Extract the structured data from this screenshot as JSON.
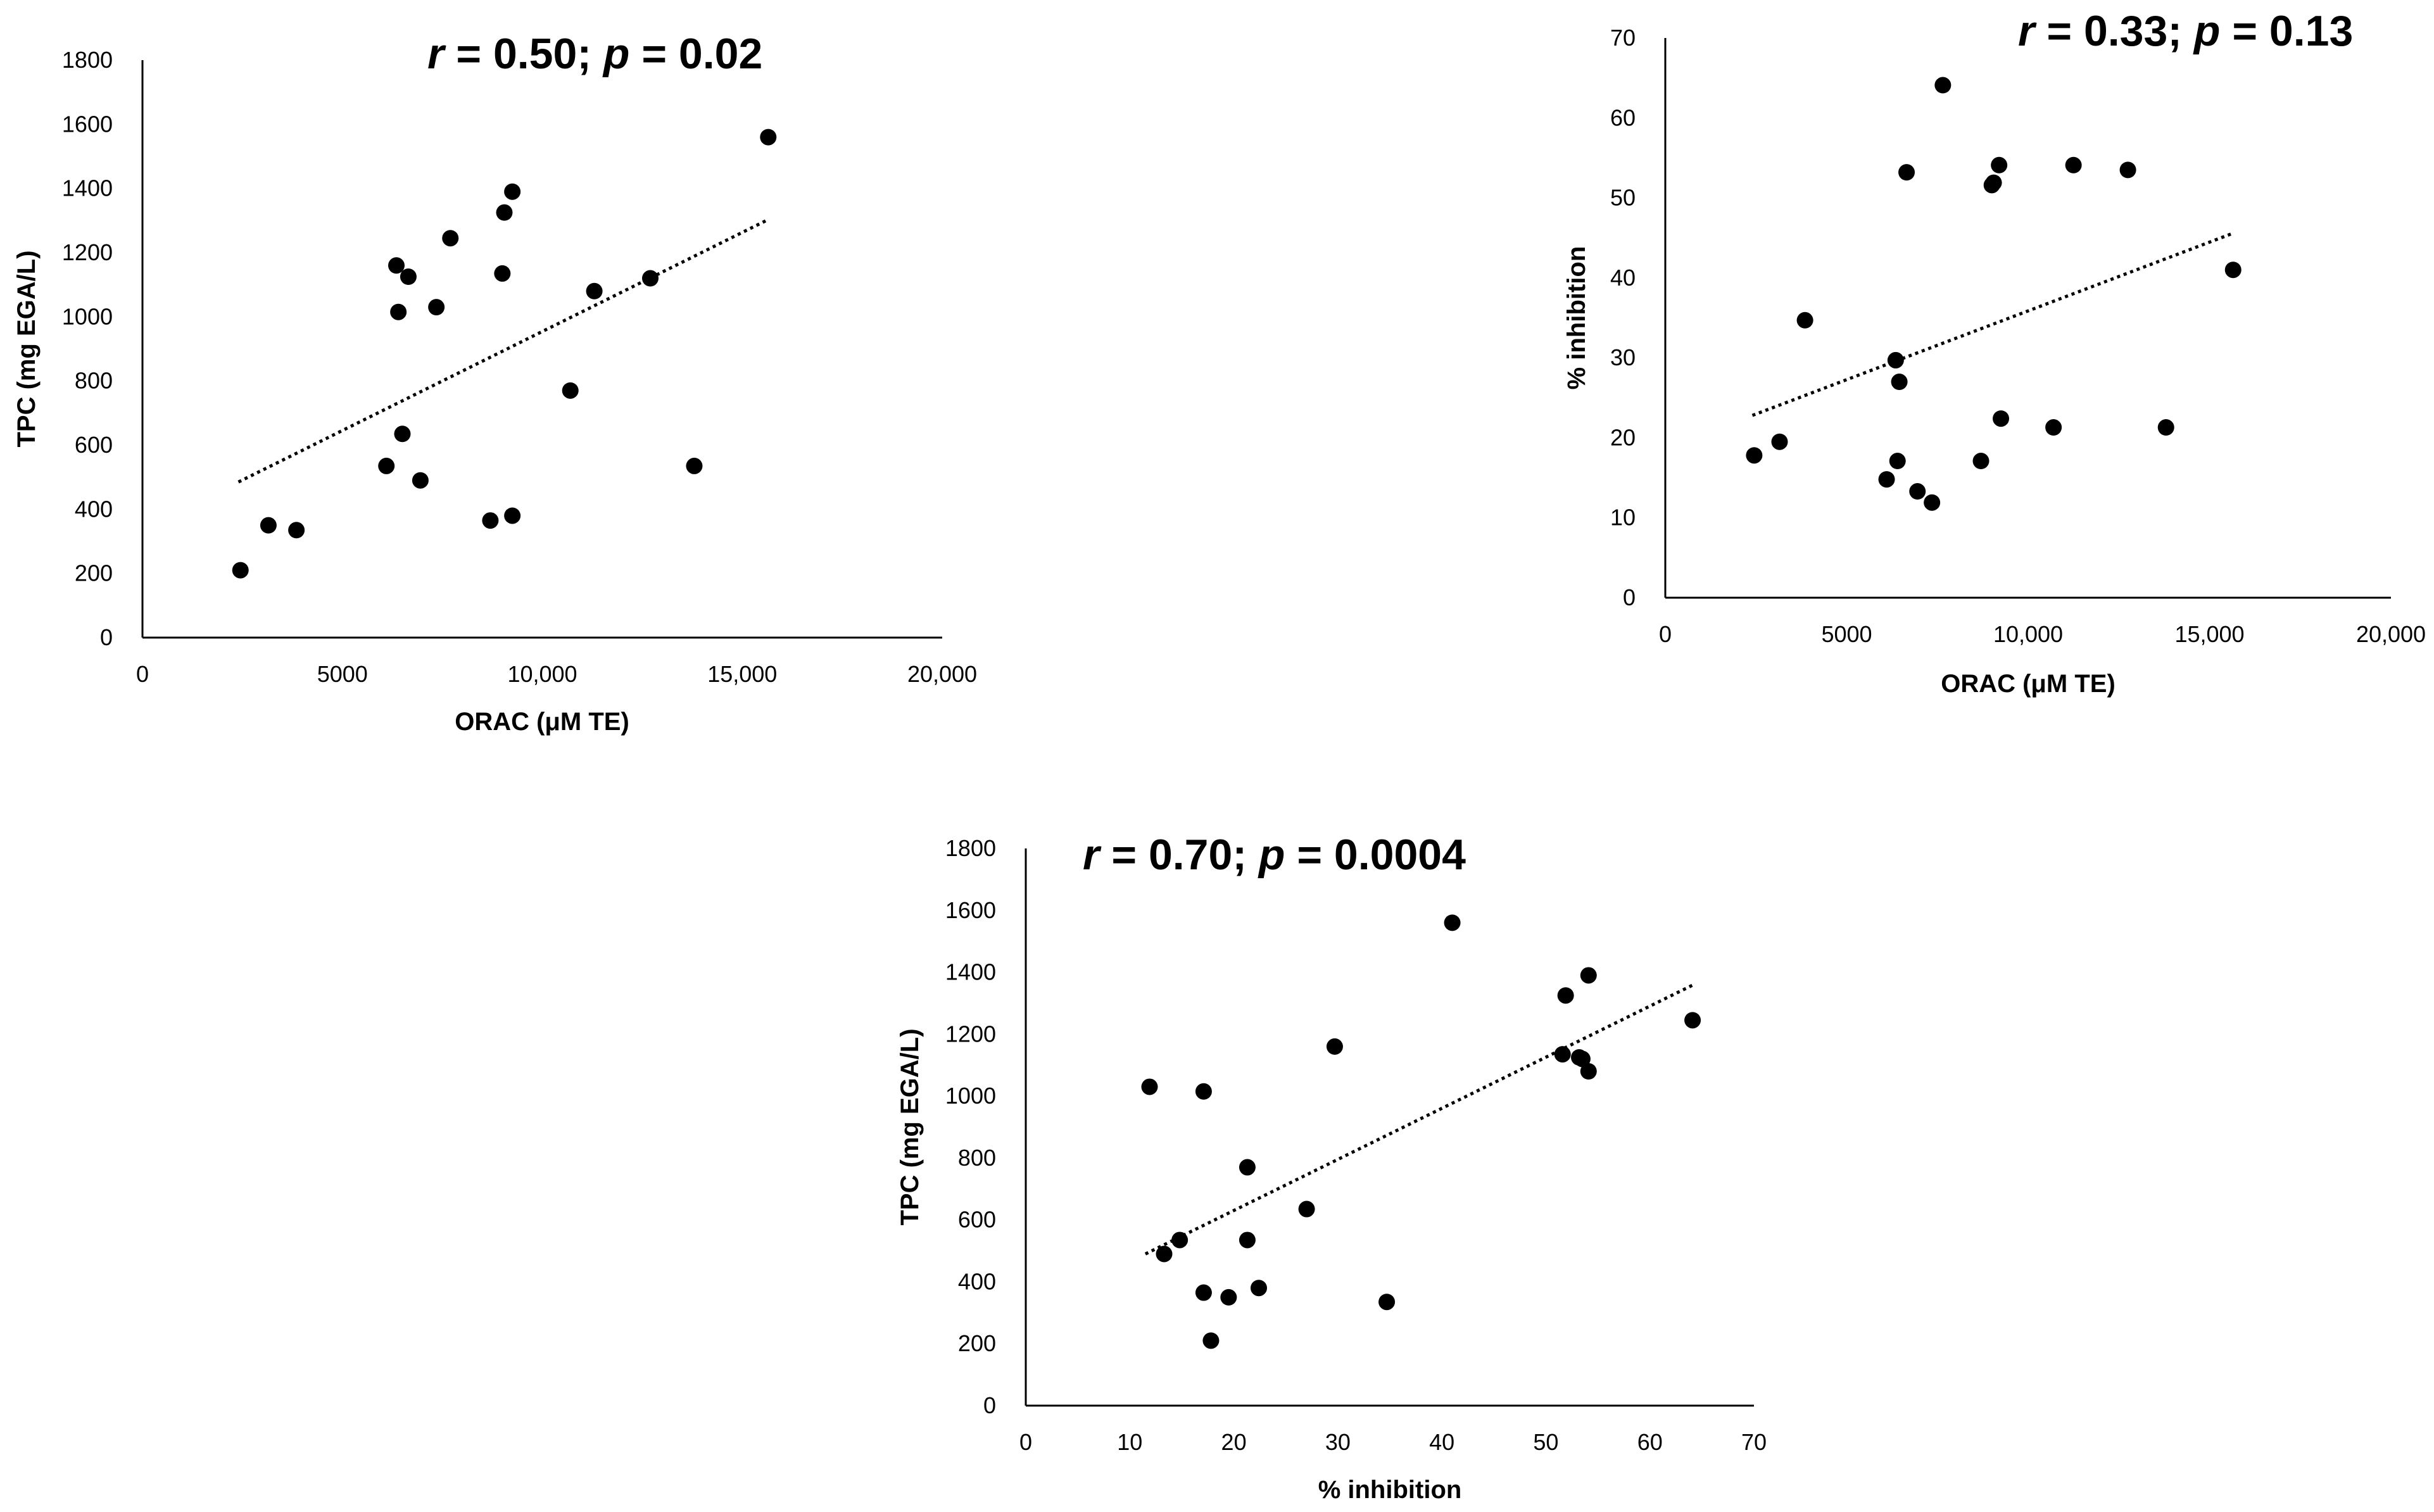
{
  "chart_data": [
    {
      "type": "scatter",
      "stat_r": "0.50",
      "stat_p": "0.02",
      "xlabel": "ORAC (μM TE)",
      "ylabel": "TPC (mg EGA/L)",
      "xlim": [
        0,
        20000
      ],
      "ylim": [
        0,
        1800
      ],
      "x_ticks": [
        "0",
        "5000",
        "10,000",
        "15,000",
        "20,000"
      ],
      "y_ticks": [
        "0",
        "200",
        "400",
        "600",
        "800",
        "1000",
        "1200",
        "1400",
        "1600",
        "1800"
      ],
      "trendline": {
        "x": [
          2400,
          15600
        ],
        "y": [
          485,
          1300
        ]
      },
      "points": [
        {
          "x": 2450,
          "y": 210
        },
        {
          "x": 3150,
          "y": 350
        },
        {
          "x": 3850,
          "y": 335
        },
        {
          "x": 6100,
          "y": 535
        },
        {
          "x": 6350,
          "y": 1160
        },
        {
          "x": 6400,
          "y": 1015
        },
        {
          "x": 6500,
          "y": 635
        },
        {
          "x": 6650,
          "y": 1125
        },
        {
          "x": 6950,
          "y": 490
        },
        {
          "x": 7350,
          "y": 1030
        },
        {
          "x": 7700,
          "y": 1245
        },
        {
          "x": 8700,
          "y": 365
        },
        {
          "x": 9000,
          "y": 1135
        },
        {
          "x": 9050,
          "y": 1325
        },
        {
          "x": 9250,
          "y": 1390
        },
        {
          "x": 9250,
          "y": 380
        },
        {
          "x": 10700,
          "y": 770
        },
        {
          "x": 11300,
          "y": 1080
        },
        {
          "x": 12700,
          "y": 1120
        },
        {
          "x": 13800,
          "y": 535
        },
        {
          "x": 15650,
          "y": 1560
        }
      ]
    },
    {
      "type": "scatter",
      "stat_r": "0.33",
      "stat_p": "0.13",
      "xlabel": "ORAC (μM TE)",
      "ylabel": "% inhibition",
      "xlim": [
        0,
        20000
      ],
      "ylim": [
        0,
        70
      ],
      "x_ticks": [
        "0",
        "5000",
        "10,000",
        "15,000",
        "20,000"
      ],
      "y_ticks": [
        "0",
        "10",
        "20",
        "30",
        "40",
        "50",
        "60",
        "70"
      ],
      "trendline": {
        "x": [
          2400,
          15600
        ],
        "y": [
          22.8,
          45.5
        ]
      },
      "points": [
        {
          "x": 2450,
          "y": 17.8
        },
        {
          "x": 3150,
          "y": 19.5
        },
        {
          "x": 3850,
          "y": 34.7
        },
        {
          "x": 6100,
          "y": 14.8
        },
        {
          "x": 6350,
          "y": 29.7
        },
        {
          "x": 6400,
          "y": 17.1
        },
        {
          "x": 6450,
          "y": 27.0
        },
        {
          "x": 6650,
          "y": 53.2
        },
        {
          "x": 6950,
          "y": 13.3
        },
        {
          "x": 7350,
          "y": 11.9
        },
        {
          "x": 7650,
          "y": 64.1
        },
        {
          "x": 8700,
          "y": 17.1
        },
        {
          "x": 9000,
          "y": 51.6
        },
        {
          "x": 9050,
          "y": 51.9
        },
        {
          "x": 9200,
          "y": 54.1
        },
        {
          "x": 9250,
          "y": 22.4
        },
        {
          "x": 10700,
          "y": 21.3
        },
        {
          "x": 11250,
          "y": 54.1
        },
        {
          "x": 12750,
          "y": 53.5
        },
        {
          "x": 13800,
          "y": 21.3
        },
        {
          "x": 15650,
          "y": 41.0
        }
      ]
    },
    {
      "type": "scatter",
      "stat_r": "0.70",
      "stat_p": "0.0004",
      "xlabel": "% inhibition",
      "ylabel": "TPC (mg EGA/L)",
      "xlim": [
        0,
        70
      ],
      "ylim": [
        0,
        1800
      ],
      "x_ticks": [
        "0",
        "10",
        "20",
        "30",
        "40",
        "50",
        "60",
        "70"
      ],
      "y_ticks": [
        "0",
        "200",
        "400",
        "600",
        "800",
        "1000",
        "1200",
        "1400",
        "1600",
        "1800"
      ],
      "trendline": {
        "x": [
          11.5,
          64.2
        ],
        "y": [
          490,
          1360
        ]
      },
      "points": [
        {
          "x": 11.9,
          "y": 1030
        },
        {
          "x": 13.3,
          "y": 490
        },
        {
          "x": 14.8,
          "y": 535
        },
        {
          "x": 17.1,
          "y": 1015
        },
        {
          "x": 17.1,
          "y": 365
        },
        {
          "x": 17.8,
          "y": 210
        },
        {
          "x": 19.5,
          "y": 350
        },
        {
          "x": 21.3,
          "y": 770
        },
        {
          "x": 21.3,
          "y": 535
        },
        {
          "x": 22.4,
          "y": 380
        },
        {
          "x": 27.0,
          "y": 635
        },
        {
          "x": 29.7,
          "y": 1160
        },
        {
          "x": 34.7,
          "y": 335
        },
        {
          "x": 41.0,
          "y": 1560
        },
        {
          "x": 51.6,
          "y": 1135
        },
        {
          "x": 51.9,
          "y": 1325
        },
        {
          "x": 53.2,
          "y": 1125
        },
        {
          "x": 53.5,
          "y": 1120
        },
        {
          "x": 54.1,
          "y": 1390
        },
        {
          "x": 54.1,
          "y": 1080
        },
        {
          "x": 64.1,
          "y": 1245
        }
      ]
    }
  ]
}
